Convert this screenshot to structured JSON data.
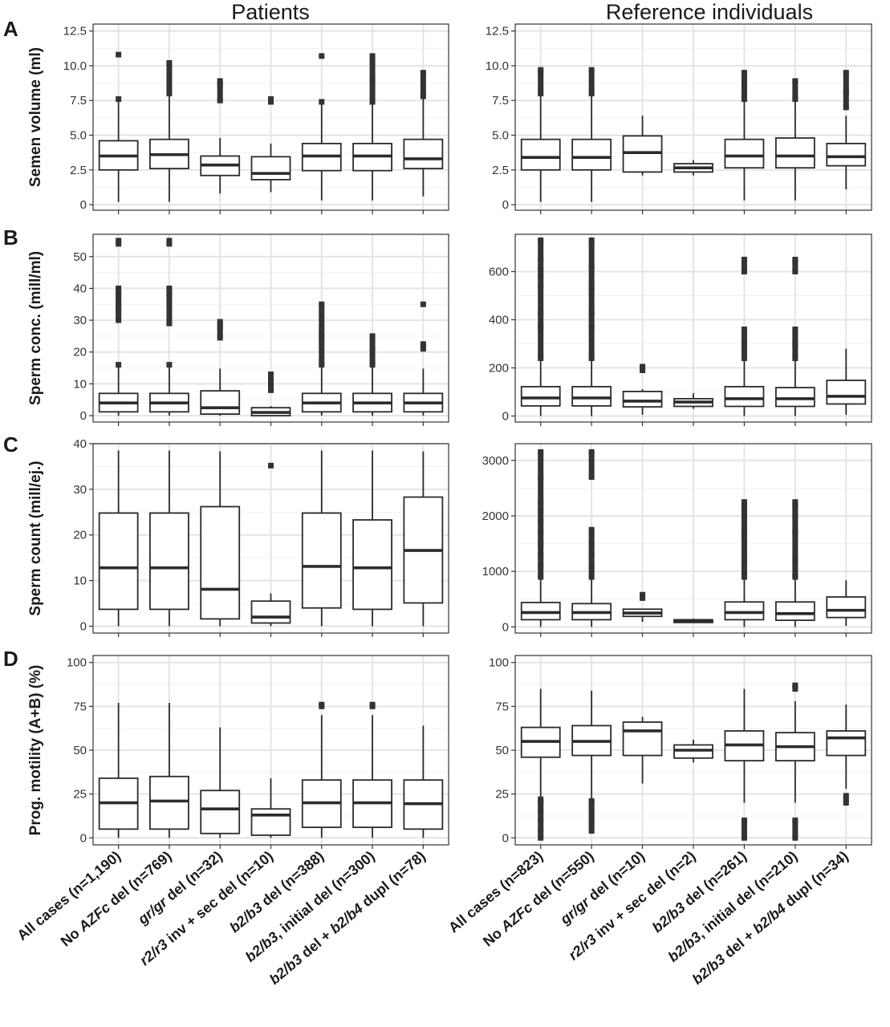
{
  "columns": [
    "Patients",
    "Reference individuals"
  ],
  "panel_letters": [
    "A",
    "B",
    "C",
    "D"
  ],
  "categories": {
    "patients": [
      {
        "prefix": "All cases (n=1,190)",
        "italic": "",
        "suffix": ""
      },
      {
        "prefix": "No ",
        "italic": "AZFc",
        "suffix": " del (n=769)"
      },
      {
        "prefix": "",
        "italic": "gr/gr",
        "suffix": " del (n=32)"
      },
      {
        "prefix": "",
        "italic": "r2/r3",
        "suffix": " inv + sec del (n=10)"
      },
      {
        "prefix": "",
        "italic": "b2/b3",
        "suffix": " del (n=388)"
      },
      {
        "prefix": "",
        "italic": "b2/b3",
        "suffix": ", initial del (n=300)"
      },
      {
        "prefix": "",
        "italic": "b2/b3",
        "suffix": " del + ",
        "italic2": "b2/b4",
        "suffix2": " dupl (n=78)"
      }
    ],
    "reference": [
      {
        "prefix": "All cases (n=823)",
        "italic": "",
        "suffix": ""
      },
      {
        "prefix": "No ",
        "italic": "AZFc",
        "suffix": " del (n=550)"
      },
      {
        "prefix": "",
        "italic": "gr/gr",
        "suffix": " del (n=10)"
      },
      {
        "prefix": "",
        "italic": "r2/r3",
        "suffix": " inv + sec del (n=2)"
      },
      {
        "prefix": "",
        "italic": "b2/b3",
        "suffix": " del (n=261)"
      },
      {
        "prefix": "",
        "italic": "b2/b3",
        "suffix": ", initial del (n=210)"
      },
      {
        "prefix": "",
        "italic": "b2/b3",
        "suffix": " del + ",
        "italic2": "b2/b4",
        "suffix2": " dupl (n=34)"
      }
    ]
  },
  "chart_data": [
    {
      "type": "box",
      "row": 0,
      "column": 0,
      "ylabel": "Semen volume (ml)",
      "ylim": [
        -0.4,
        13.0
      ],
      "yticks": [
        0,
        2.5,
        5.0,
        7.5,
        10.0,
        12.5
      ],
      "ytick_labels": [
        "0",
        "2.5",
        "5.0",
        "7.5",
        "10.0",
        "12.5"
      ],
      "boxes": [
        {
          "min": 0.2,
          "q1": 2.5,
          "median": 3.5,
          "q3": 4.6,
          "max": 7.6,
          "outliers": [
            7.6,
            10.8
          ]
        },
        {
          "min": 0.2,
          "q1": 2.6,
          "median": 3.6,
          "q3": 4.7,
          "max": 7.8,
          "outliers": [
            8.0,
            10.2
          ]
        },
        {
          "min": 0.8,
          "q1": 2.1,
          "median": 2.85,
          "q3": 3.5,
          "max": 4.8,
          "outliers": [
            7.5,
            8.6,
            8.9
          ]
        },
        {
          "min": 0.9,
          "q1": 1.8,
          "median": 2.25,
          "q3": 3.45,
          "max": 4.4,
          "outliers": [
            7.4,
            7.6
          ]
        },
        {
          "min": 0.3,
          "q1": 2.45,
          "median": 3.5,
          "q3": 4.4,
          "max": 7.4,
          "outliers": [
            7.4,
            10.7
          ]
        },
        {
          "min": 0.3,
          "q1": 2.45,
          "median": 3.5,
          "q3": 4.4,
          "max": 7.4,
          "outliers": [
            7.4,
            9.0,
            10.7
          ]
        },
        {
          "min": 0.6,
          "q1": 2.6,
          "median": 3.3,
          "q3": 4.7,
          "max": 7.6,
          "outliers": [
            7.8,
            9.5
          ]
        }
      ]
    },
    {
      "type": "box",
      "row": 0,
      "column": 1,
      "ylabel": "",
      "ylim": [
        -0.4,
        13.0
      ],
      "yticks": [
        0,
        2.5,
        5.0,
        7.5,
        10.0,
        12.5
      ],
      "ytick_labels": [
        "0",
        "2.5",
        "5.0",
        "7.5",
        "10.0",
        "12.5"
      ],
      "boxes": [
        {
          "min": 0.2,
          "q1": 2.5,
          "median": 3.4,
          "q3": 4.7,
          "max": 7.8,
          "outliers": [
            8.0,
            9.7
          ]
        },
        {
          "min": 0.2,
          "q1": 2.5,
          "median": 3.4,
          "q3": 4.7,
          "max": 7.8,
          "outliers": [
            8.0,
            9.7
          ]
        },
        {
          "min": 2.1,
          "q1": 2.35,
          "median": 3.75,
          "q3": 4.95,
          "max": 6.4,
          "outliers": []
        },
        {
          "min": 2.1,
          "q1": 2.35,
          "median": 2.65,
          "q3": 2.95,
          "max": 3.2,
          "outliers": []
        },
        {
          "min": 0.3,
          "q1": 2.65,
          "median": 3.5,
          "q3": 4.7,
          "max": 7.5,
          "outliers": [
            7.6,
            9.5
          ]
        },
        {
          "min": 0.3,
          "q1": 2.65,
          "median": 3.5,
          "q3": 4.8,
          "max": 7.5,
          "outliers": [
            7.6,
            8.9
          ]
        },
        {
          "min": 1.1,
          "q1": 2.8,
          "median": 3.45,
          "q3": 4.4,
          "max": 6.4,
          "outliers": [
            7.0,
            8.1,
            9.5
          ]
        }
      ]
    },
    {
      "type": "box",
      "row": 1,
      "column": 0,
      "ylabel": "Sperm conc. (mill/ml)",
      "ylim": [
        -2,
        57
      ],
      "yticks": [
        0,
        10,
        20,
        30,
        40,
        50
      ],
      "ytick_labels": [
        "0",
        "10",
        "20",
        "30",
        "40",
        "50"
      ],
      "boxes": [
        {
          "min": 0,
          "q1": 1.2,
          "median": 4.0,
          "q3": 7.0,
          "max": 16,
          "outliers": [
            16,
            30,
            33,
            35,
            38,
            40,
            54,
            55
          ]
        },
        {
          "min": 0,
          "q1": 1.2,
          "median": 4.0,
          "q3": 7.0,
          "max": 16,
          "outliers": [
            16,
            29,
            38,
            40,
            54,
            55
          ]
        },
        {
          "min": 0,
          "q1": 0.5,
          "median": 2.5,
          "q3": 7.8,
          "max": 14.8,
          "outliers": [
            24.5,
            28,
            29.5
          ]
        },
        {
          "min": 0,
          "q1": 0,
          "median": 1.0,
          "q3": 2.5,
          "max": 3.0,
          "outliers": [
            8,
            12,
            13
          ]
        },
        {
          "min": 0,
          "q1": 1.2,
          "median": 4.0,
          "q3": 7.0,
          "max": 16,
          "outliers": [
            16,
            25,
            35
          ]
        },
        {
          "min": 0,
          "q1": 1.2,
          "median": 4.0,
          "q3": 7.0,
          "max": 16,
          "outliers": [
            16,
            21,
            25
          ]
        },
        {
          "min": 0,
          "q1": 1.2,
          "median": 4.0,
          "q3": 7.0,
          "max": 14.8,
          "outliers": [
            21,
            22.5,
            35
          ]
        }
      ]
    },
    {
      "type": "box",
      "row": 1,
      "column": 1,
      "ylabel": "",
      "ylim": [
        -25,
        755
      ],
      "yticks": [
        0,
        200,
        400,
        600
      ],
      "ytick_labels": [
        "0",
        "200",
        "400",
        "600"
      ],
      "boxes": [
        {
          "min": 0,
          "q1": 42,
          "median": 75,
          "q3": 122,
          "max": 235,
          "outliers": [
            240,
            370,
            430,
            540,
            580,
            610,
            650,
            730
          ]
        },
        {
          "min": 0,
          "q1": 42,
          "median": 75,
          "q3": 122,
          "max": 235,
          "outliers": [
            240,
            370,
            430,
            530,
            620,
            730
          ]
        },
        {
          "min": 5,
          "q1": 38,
          "median": 62,
          "q3": 102,
          "max": 112,
          "outliers": [
            190,
            205
          ]
        },
        {
          "min": 30,
          "q1": 40,
          "median": 58,
          "q3": 72,
          "max": 95,
          "outliers": []
        },
        {
          "min": 0,
          "q1": 40,
          "median": 72,
          "q3": 122,
          "max": 235,
          "outliers": [
            240,
            300,
            360,
            600,
            650
          ]
        },
        {
          "min": 0,
          "q1": 40,
          "median": 72,
          "q3": 118,
          "max": 235,
          "outliers": [
            240,
            300,
            360,
            600,
            650
          ]
        },
        {
          "min": 5,
          "q1": 50,
          "median": 82,
          "q3": 148,
          "max": 280,
          "outliers": []
        }
      ]
    },
    {
      "type": "box",
      "row": 2,
      "column": 0,
      "ylabel": "Sperm count (mill/ej.)",
      "ylim": [
        -1.5,
        40
      ],
      "yticks": [
        0,
        10,
        20,
        30,
        40
      ],
      "ytick_labels": [
        "0",
        "10",
        "20",
        "30",
        "40"
      ],
      "boxes": [
        {
          "min": 0,
          "q1": 3.7,
          "median": 12.8,
          "q3": 24.8,
          "max": 38.5,
          "outliers": []
        },
        {
          "min": 0,
          "q1": 3.7,
          "median": 12.8,
          "q3": 24.8,
          "max": 38.5,
          "outliers": []
        },
        {
          "min": 0,
          "q1": 1.6,
          "median": 8.1,
          "q3": 26.2,
          "max": 38.3,
          "outliers": []
        },
        {
          "min": 0,
          "q1": 0.7,
          "median": 2.0,
          "q3": 5.5,
          "max": 7.2,
          "outliers": [
            35.2
          ]
        },
        {
          "min": 0,
          "q1": 4.0,
          "median": 13.1,
          "q3": 24.8,
          "max": 38.5,
          "outliers": []
        },
        {
          "min": 0,
          "q1": 3.7,
          "median": 12.8,
          "q3": 23.3,
          "max": 38.5,
          "outliers": []
        },
        {
          "min": 0,
          "q1": 5.1,
          "median": 16.6,
          "q3": 28.3,
          "max": 38.3,
          "outliers": []
        }
      ]
    },
    {
      "type": "box",
      "row": 2,
      "column": 1,
      "ylabel": "",
      "ylim": [
        -110,
        3300
      ],
      "yticks": [
        0,
        1000,
        2000,
        3000
      ],
      "ytick_labels": [
        "0",
        "1000",
        "2000",
        "3000"
      ],
      "boxes": [
        {
          "min": 0,
          "q1": 130,
          "median": 260,
          "q3": 440,
          "max": 880,
          "outliers": [
            900,
            1100,
            1300,
            1500,
            1700,
            1900,
            2100,
            2250,
            2700,
            3150
          ]
        },
        {
          "min": 0,
          "q1": 130,
          "median": 260,
          "q3": 420,
          "max": 880,
          "outliers": [
            900,
            1100,
            1300,
            1500,
            1750,
            2700,
            3150
          ]
        },
        {
          "min": 90,
          "q1": 190,
          "median": 250,
          "q3": 320,
          "max": 330,
          "outliers": [
            520,
            580
          ]
        },
        {
          "min": 70,
          "q1": 80,
          "median": 100,
          "q3": 130,
          "max": 150,
          "outliers": []
        },
        {
          "min": 0,
          "q1": 130,
          "median": 260,
          "q3": 450,
          "max": 880,
          "outliers": [
            900,
            1200,
            1700,
            2000,
            2150,
            2250
          ]
        },
        {
          "min": 0,
          "q1": 120,
          "median": 240,
          "q3": 450,
          "max": 880,
          "outliers": [
            900,
            1200,
            1700,
            2000,
            2150,
            2250
          ]
        },
        {
          "min": 20,
          "q1": 170,
          "median": 300,
          "q3": 540,
          "max": 840,
          "outliers": []
        }
      ]
    },
    {
      "type": "box",
      "row": 3,
      "column": 0,
      "ylabel": "Prog. motility (A+B) (%)",
      "ylim": [
        -4,
        104
      ],
      "yticks": [
        0,
        25,
        50,
        75,
        100
      ],
      "ytick_labels": [
        "0",
        "25",
        "50",
        "75",
        "100"
      ],
      "boxes": [
        {
          "min": 0,
          "q1": 5,
          "median": 20,
          "q3": 34,
          "max": 77,
          "outliers": []
        },
        {
          "min": 0,
          "q1": 5,
          "median": 21,
          "q3": 35,
          "max": 77,
          "outliers": []
        },
        {
          "min": 0,
          "q1": 2.5,
          "median": 16.5,
          "q3": 27,
          "max": 63,
          "outliers": []
        },
        {
          "min": 0,
          "q1": 1.5,
          "median": 13,
          "q3": 16.5,
          "max": 34,
          "outliers": []
        },
        {
          "min": 0,
          "q1": 6,
          "median": 20,
          "q3": 33,
          "max": 70,
          "outliers": [
            75,
            76
          ]
        },
        {
          "min": 0,
          "q1": 6,
          "median": 20,
          "q3": 33,
          "max": 70,
          "outliers": [
            75,
            76
          ]
        },
        {
          "min": 0,
          "q1": 5,
          "median": 19.5,
          "q3": 33,
          "max": 64,
          "outliers": []
        }
      ]
    },
    {
      "type": "box",
      "row": 3,
      "column": 1,
      "ylabel": "",
      "ylim": [
        -4,
        104
      ],
      "yticks": [
        0,
        25,
        50,
        75,
        100
      ],
      "ytick_labels": [
        "0",
        "25",
        "50",
        "75",
        "100"
      ],
      "boxes": [
        {
          "min": 23,
          "q1": 46,
          "median": 55,
          "q3": 63,
          "max": 85,
          "outliers": [
            0,
            5,
            10,
            15,
            20,
            22
          ]
        },
        {
          "min": 22,
          "q1": 47,
          "median": 55,
          "q3": 64,
          "max": 84,
          "outliers": [
            4,
            10,
            15,
            20,
            21
          ]
        },
        {
          "min": 31,
          "q1": 47,
          "median": 61,
          "q3": 66,
          "max": 69,
          "outliers": []
        },
        {
          "min": 43,
          "q1": 45.5,
          "median": 50,
          "q3": 53,
          "max": 56,
          "outliers": []
        },
        {
          "min": 20,
          "q1": 44,
          "median": 53,
          "q3": 61,
          "max": 85,
          "outliers": [
            0,
            10
          ]
        },
        {
          "min": 20,
          "q1": 44,
          "median": 52,
          "q3": 60,
          "max": 78,
          "outliers": [
            0,
            10,
            85,
            87
          ]
        },
        {
          "min": 28,
          "q1": 47,
          "median": 57,
          "q3": 61,
          "max": 76,
          "outliers": [
            20,
            24
          ]
        }
      ]
    }
  ]
}
